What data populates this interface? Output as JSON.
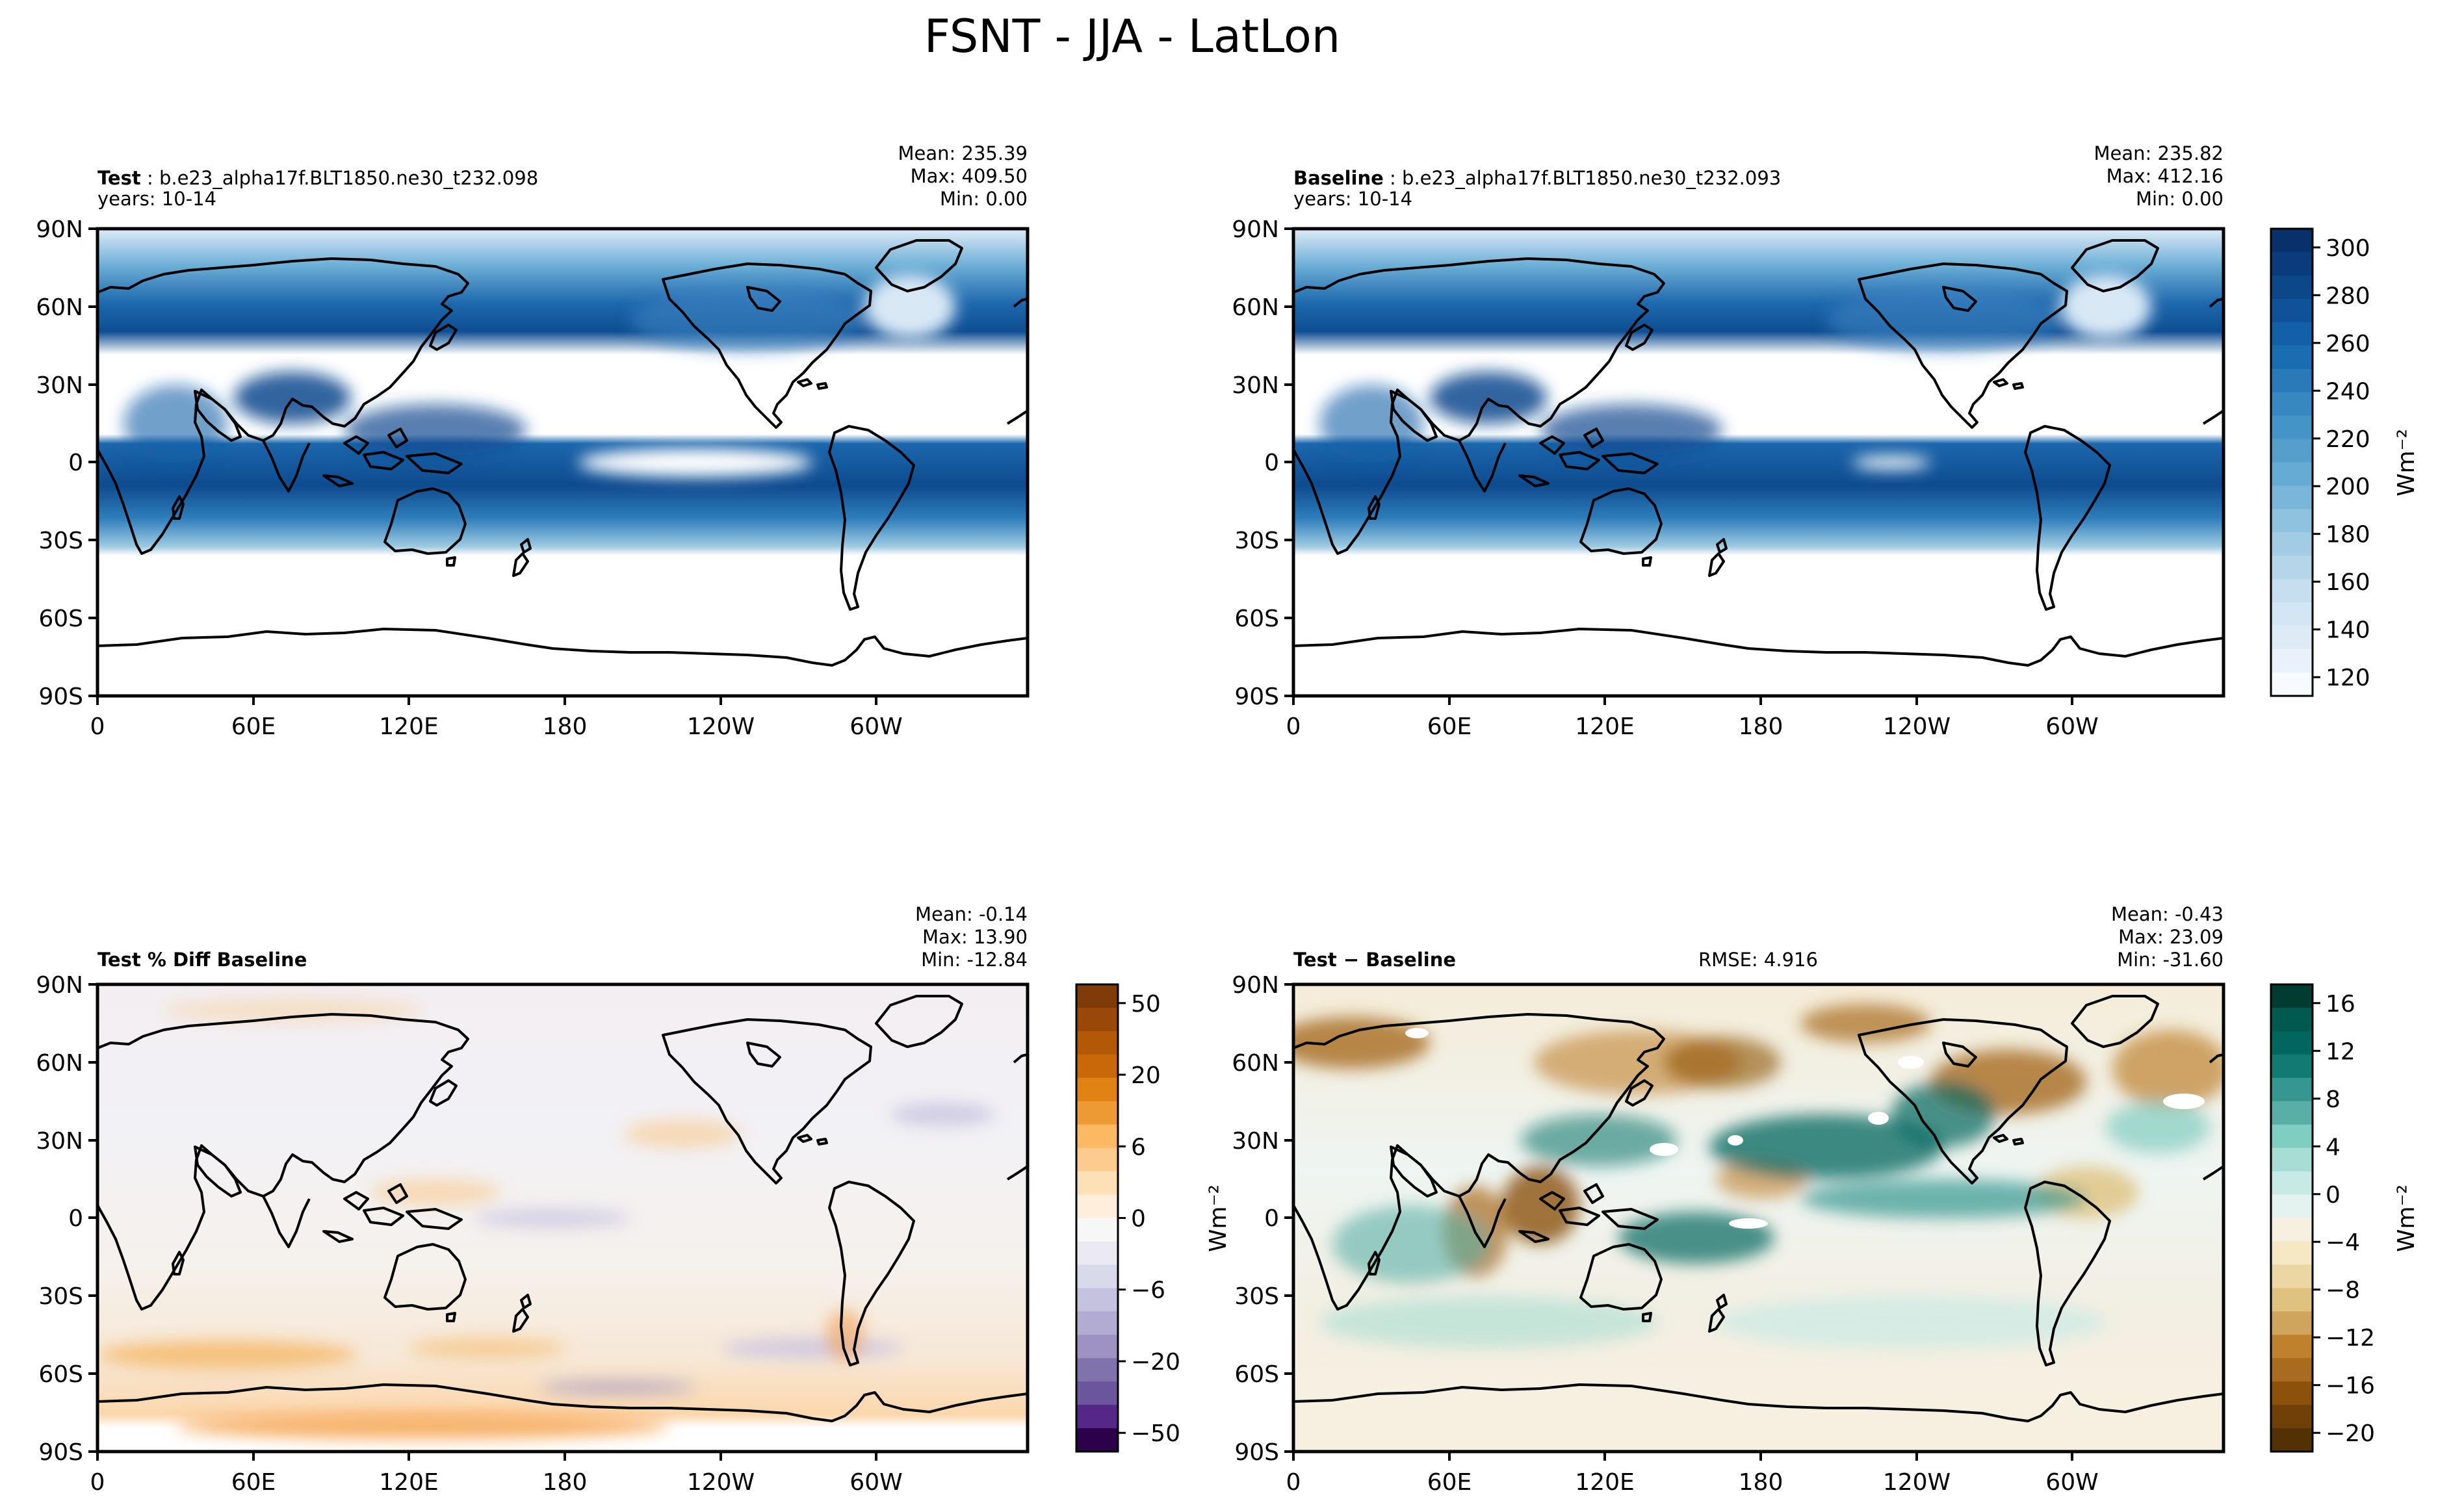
{
  "chart_data": {
    "type": "heatmap",
    "title": "FSNT - JJA - LatLon",
    "lat_ticks": [
      "90N",
      "60N",
      "30N",
      "0",
      "30S",
      "60S",
      "90S"
    ],
    "lon_ticks": [
      "0",
      "60E",
      "120E",
      "180",
      "120W",
      "60W"
    ],
    "panels": [
      {
        "id": "test",
        "label": "Test",
        "case": "b.e23_alpha17f.BLT1850.ne30_t232.098",
        "years": "years: 10-14",
        "stats": {
          "mean": "Mean: 235.39",
          "max": "Max: 409.50",
          "min": "Min:  0.00"
        },
        "colormap": "Blues",
        "range": [
          120,
          310
        ]
      },
      {
        "id": "baseline",
        "label": "Baseline",
        "case": "b.e23_alpha17f.BLT1850.ne30_t232.093",
        "years": "years: 10-14",
        "stats": {
          "mean": "Mean: 235.82",
          "max": "Max: 412.16",
          "min": "Min:  0.00"
        },
        "colormap": "Blues",
        "range": [
          120,
          310
        ]
      },
      {
        "id": "pctdiff",
        "label": "Test % Diff Baseline",
        "stats": {
          "mean": "Mean: -0.14",
          "max": "Max: 13.90",
          "min": "Min: -12.84"
        },
        "colormap": "PuOr",
        "range": [
          -60,
          60
        ]
      },
      {
        "id": "diff",
        "label": "Test − Baseline",
        "rmse": "RMSE: 4.916",
        "stats": {
          "mean": "Mean: -0.43",
          "max": "Max: 23.09",
          "min": "Min: -31.60"
        },
        "colormap": "BrBG",
        "range": [
          -20,
          18
        ]
      }
    ],
    "colorbars": [
      {
        "id": "top",
        "label": "Wm⁻²",
        "ticks": [
          "300",
          "280",
          "260",
          "240",
          "220",
          "200",
          "180",
          "160",
          "140",
          "120"
        ],
        "colors": [
          "#08306b",
          "#0a3b7a",
          "#0c478a",
          "#0f5299",
          "#1460a8",
          "#1a6db0",
          "#2a7ab9",
          "#3787c0",
          "#4594c7",
          "#559fcd",
          "#66abd4",
          "#7ab6d9",
          "#8fc2de",
          "#a2cce3",
          "#b5d6e9",
          "#c6dfef",
          "#d2e6f4",
          "#deebf7",
          "#e9f2fa",
          "#f7fbff"
        ]
      },
      {
        "id": "pct",
        "label": "",
        "ticks": [
          "50",
          "20",
          "6",
          "0",
          "−6",
          "−20",
          "−50"
        ],
        "colors": [
          "#7f3b08",
          "#9a4807",
          "#b35806",
          "#c96809",
          "#e08214",
          "#ed9a35",
          "#fdb863",
          "#fdcb8d",
          "#fee0b6",
          "#feeedb",
          "#f7f7f7",
          "#ebeaf3",
          "#d8daeb",
          "#c4c2df",
          "#b2abd2",
          "#9d92c2",
          "#8073ac",
          "#6b569b",
          "#542788",
          "#2d004b"
        ]
      },
      {
        "id": "diff",
        "label": "Wm⁻²",
        "ticks": [
          "16",
          "12",
          "8",
          "4",
          "0",
          "−4",
          "−8",
          "−12",
          "−16",
          "−20"
        ],
        "colors": [
          "#003c30",
          "#01594f",
          "#01665e",
          "#127a71",
          "#35978f",
          "#59afa6",
          "#80cdc1",
          "#a8ddd3",
          "#c7eae5",
          "#e4f3f0",
          "#f7f0e0",
          "#f6e8c3",
          "#ecd6a3",
          "#dfc27d",
          "#cfa45c",
          "#bf812d",
          "#a86b20",
          "#8c510a",
          "#704009",
          "#543005"
        ]
      }
    ]
  }
}
